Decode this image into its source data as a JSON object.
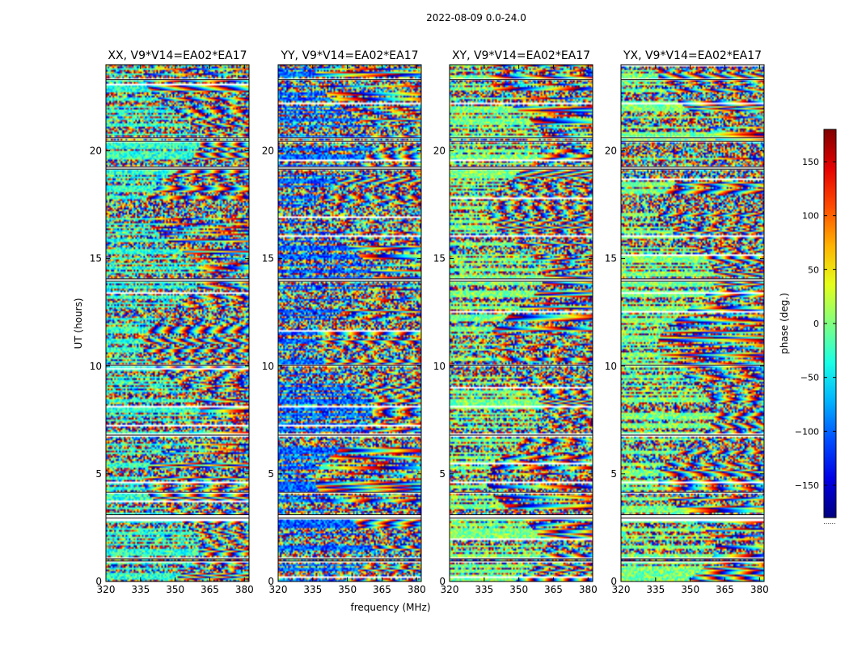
{
  "figure": {
    "suptitle": "2022-08-09 0.0-24.0",
    "xlabel": "frequency (MHz)",
    "ylabel": "UT (hours)",
    "colorbar_label": "phase (deg.)",
    "colorbar_extra_label": "......"
  },
  "chart_data": {
    "type": "heatmap",
    "colormap": "jet",
    "x_range": [
      320,
      382
    ],
    "y_range": [
      0,
      24
    ],
    "x_ticks": [
      320,
      335,
      350,
      365,
      380
    ],
    "x_tick_labels": [
      "320",
      "335",
      "350",
      "365",
      "380"
    ],
    "y_ticks": [
      0,
      5,
      10,
      15,
      20
    ],
    "y_tick_labels": [
      "0",
      "5",
      "10",
      "15",
      "20"
    ],
    "color_range": [
      -180,
      180
    ],
    "colorbar_ticks": [
      150,
      100,
      50,
      0,
      -50,
      -100,
      -150
    ],
    "colorbar_tick_labels": [
      "150",
      "100",
      "50",
      "0",
      "−50",
      "−100",
      "−150"
    ],
    "flagged_hours": [
      0.95,
      1.05,
      2.95,
      3.1,
      4.15,
      6.8,
      10.05,
      13.95,
      14.05,
      19.15,
      19.25,
      20.45,
      20.6,
      23.3
    ],
    "panels": [
      {
        "title": "XX, V9*V14=EA02*EA17",
        "pol": "XX"
      },
      {
        "title": "YY, V9*V14=EA02*EA17",
        "pol": "YY"
      },
      {
        "title": "XY, V9*V14=EA02*EA17",
        "pol": "XY"
      },
      {
        "title": "YX, V9*V14=EA02*EA17",
        "pol": "YX"
      }
    ]
  },
  "colors": {
    "background": "#ffffff",
    "axes": "#000000",
    "flag": "#ffffff"
  }
}
